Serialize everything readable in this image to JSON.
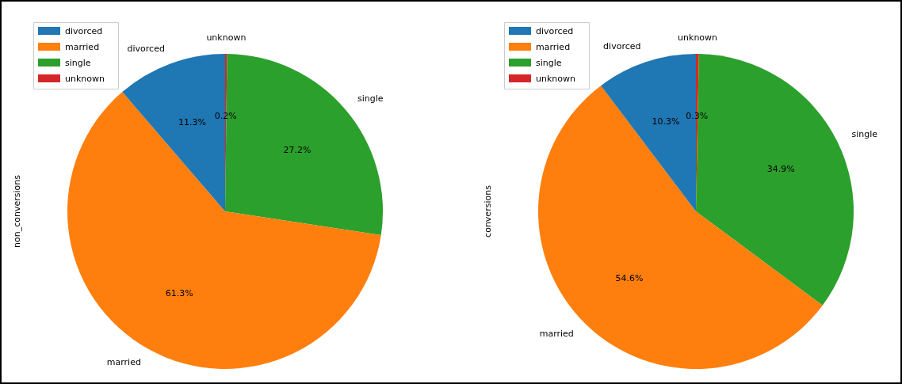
{
  "chart_data": [
    {
      "type": "pie",
      "ylabel": "non_conversions",
      "categories": [
        "divorced",
        "married",
        "single",
        "unknown"
      ],
      "values": [
        11.3,
        61.3,
        27.2,
        0.2
      ],
      "value_labels": [
        "11.3%",
        "61.3%",
        "27.2%",
        "0.2%"
      ],
      "colors": [
        "#1f77b4",
        "#ff7f0e",
        "#2ca02c",
        "#d62728"
      ],
      "legend": "top left"
    },
    {
      "type": "pie",
      "ylabel": "conversions",
      "categories": [
        "divorced",
        "married",
        "single",
        "unknown"
      ],
      "values": [
        10.3,
        54.6,
        34.9,
        0.3
      ],
      "value_labels": [
        "10.3%",
        "54.6%",
        "34.9%",
        "0.3%"
      ],
      "colors": [
        "#1f77b4",
        "#ff7f0e",
        "#2ca02c",
        "#d62728"
      ],
      "legend": "top left"
    }
  ]
}
